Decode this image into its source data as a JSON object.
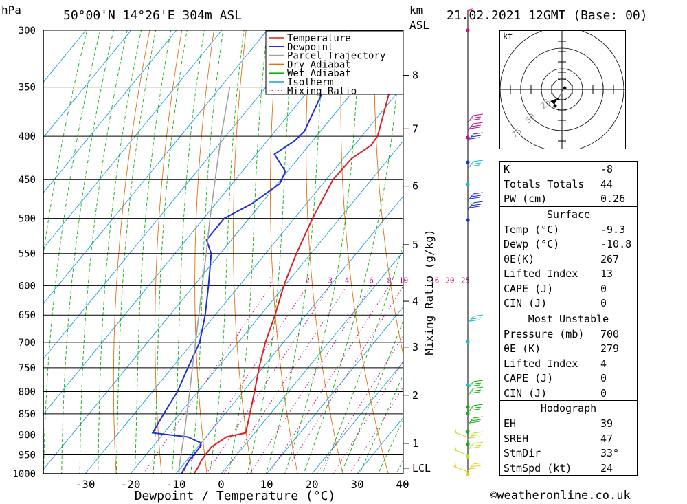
{
  "header": {
    "unit_hpa": "hPa",
    "station": "50°00'N 14°26'E 304m ASL",
    "unit_km": "km",
    "unit_asl": "ASL",
    "datetime": "21.02.2021 12GMT (Base: 00)"
  },
  "chart_data": {
    "type": "line",
    "title": "",
    "xlabel": "Dewpoint / Temperature (°C)",
    "ylabel": "hPa",
    "y2label": "Mixing Ratio (g/kg)",
    "xlim": [
      -40,
      40
    ],
    "ylim": [
      1000,
      300
    ],
    "y_scale": "log",
    "x_ticks": [
      -30,
      -20,
      -10,
      0,
      10,
      20,
      30,
      40
    ],
    "pressure_levels": [
      300,
      350,
      400,
      450,
      500,
      550,
      600,
      650,
      700,
      750,
      800,
      850,
      900,
      950,
      1000
    ],
    "height_km_ticks": [
      {
        "label": "8",
        "p": 339
      },
      {
        "label": "7",
        "p": 392
      },
      {
        "label": "6",
        "p": 458
      },
      {
        "label": "5",
        "p": 537
      },
      {
        "label": "4",
        "p": 626
      },
      {
        "label": "3",
        "p": 709
      },
      {
        "label": "2",
        "p": 808
      },
      {
        "label": "1",
        "p": 921
      },
      {
        "label": "LCL",
        "p": 985
      }
    ],
    "mixing_ratio_labels": [
      "1",
      "2",
      "3",
      "4",
      "6",
      "8",
      "10",
      "16",
      "20",
      "25"
    ],
    "mixing_ratio_values": [
      1,
      2,
      3,
      4,
      6,
      8,
      10,
      16,
      20,
      25
    ],
    "grid": true,
    "legend_position": "top-right",
    "legend": [
      {
        "name": "Temperature",
        "color": "#e01e1e"
      },
      {
        "name": "Dewpoint",
        "color": "#1e2fd8"
      },
      {
        "name": "Parcel Trajectory",
        "color": "#a0a0a0"
      },
      {
        "name": "Dry Adiabat",
        "color": "#e07010"
      },
      {
        "name": "Wet Adiabat",
        "color": "#10b010"
      },
      {
        "name": "Isotherm",
        "color": "#1a9ee0"
      },
      {
        "name": "Mixing Ratio",
        "color": "#c0108a"
      }
    ],
    "series": [
      {
        "name": "Temperature",
        "color": "#e01e1e",
        "points": [
          [
            1000,
            -6
          ],
          [
            980,
            -6.3
          ],
          [
            965,
            -6.8
          ],
          [
            930,
            -7
          ],
          [
            905,
            -5.5
          ],
          [
            895,
            -2
          ],
          [
            880,
            -2.8
          ],
          [
            850,
            -4.5
          ],
          [
            800,
            -7.5
          ],
          [
            750,
            -10.8
          ],
          [
            700,
            -14
          ],
          [
            650,
            -16.8
          ],
          [
            600,
            -20.2
          ],
          [
            550,
            -23.2
          ],
          [
            500,
            -26
          ],
          [
            450,
            -28.5
          ],
          [
            425,
            -28.2
          ],
          [
            410,
            -26.3
          ],
          [
            400,
            -26.5
          ],
          [
            370,
            -30
          ],
          [
            350,
            -32.5
          ],
          [
            300,
            -38
          ]
        ]
      },
      {
        "name": "Dewpoint",
        "color": "#1e2fd8",
        "points": [
          [
            1000,
            -8.8
          ],
          [
            980,
            -9.2
          ],
          [
            965,
            -9.5
          ],
          [
            930,
            -9.5
          ],
          [
            920,
            -10
          ],
          [
            905,
            -14
          ],
          [
            895,
            -22.5
          ],
          [
            850,
            -23.5
          ],
          [
            800,
            -24.5
          ],
          [
            750,
            -26.5
          ],
          [
            700,
            -28.5
          ],
          [
            650,
            -32.2
          ],
          [
            600,
            -36.8
          ],
          [
            550,
            -42
          ],
          [
            530,
            -45.5
          ],
          [
            500,
            -45.5
          ],
          [
            480,
            -42
          ],
          [
            455,
            -39.5
          ],
          [
            440,
            -40.5
          ],
          [
            420,
            -46
          ],
          [
            405,
            -44
          ],
          [
            395,
            -43.5
          ],
          [
            350,
            -47
          ],
          [
            300,
            -52
          ]
        ]
      },
      {
        "name": "Parcel Trajectory",
        "color": "#a0a0a0",
        "points": [
          [
            1000,
            -9.3
          ],
          [
            985,
            -10.3
          ],
          [
            950,
            -12.3
          ],
          [
            900,
            -15.2
          ],
          [
            850,
            -18.4
          ],
          [
            800,
            -21.8
          ],
          [
            750,
            -25.5
          ],
          [
            700,
            -29.4
          ],
          [
            650,
            -33.6
          ],
          [
            600,
            -38.2
          ],
          [
            550,
            -43.1
          ],
          [
            500,
            -48.6
          ],
          [
            450,
            -54.5
          ],
          [
            400,
            -61
          ],
          [
            350,
            -68
          ]
        ]
      }
    ]
  },
  "hodograph": {
    "unit": "kt",
    "ring_labels": [
      "25",
      "50",
      "75"
    ]
  },
  "indices": {
    "k_label": "K",
    "k_val": "-8",
    "tt_label": "Totals Totals",
    "tt_val": "44",
    "pw_label": "PW (cm)",
    "pw_val": "0.26"
  },
  "surface": {
    "title": "Surface",
    "temp_label": "Temp (°C)",
    "temp_val": "-9.3",
    "dewp_label": "Dewp (°C)",
    "dewp_val": "-10.8",
    "theta_label": "θE(K)",
    "theta_val": "267",
    "li_label": "Lifted Index",
    "li_val": "13",
    "cape_label": "CAPE (J)",
    "cape_val": "0",
    "cin_label": "CIN (J)",
    "cin_val": "0"
  },
  "most_unstable": {
    "title": "Most Unstable",
    "pres_label": "Pressure (mb)",
    "pres_val": "700",
    "theta_label": "θE (K)",
    "theta_val": "279",
    "li_label": "Lifted Index",
    "li_val": "4",
    "cape_label": "CAPE (J)",
    "cape_val": "0",
    "cin_label": "CIN (J)",
    "cin_val": "0"
  },
  "hodo_stats": {
    "title": "Hodograph",
    "eh_label": "EH",
    "eh_val": "39",
    "sreh_label": "SREH",
    "sreh_val": "47",
    "stmdir_label": "StmDir",
    "stmdir_val": "33°",
    "stmspd_label": "StmSpd (kt)",
    "stmspd_val": "24"
  },
  "credit": "©weatheronline.co.uk"
}
